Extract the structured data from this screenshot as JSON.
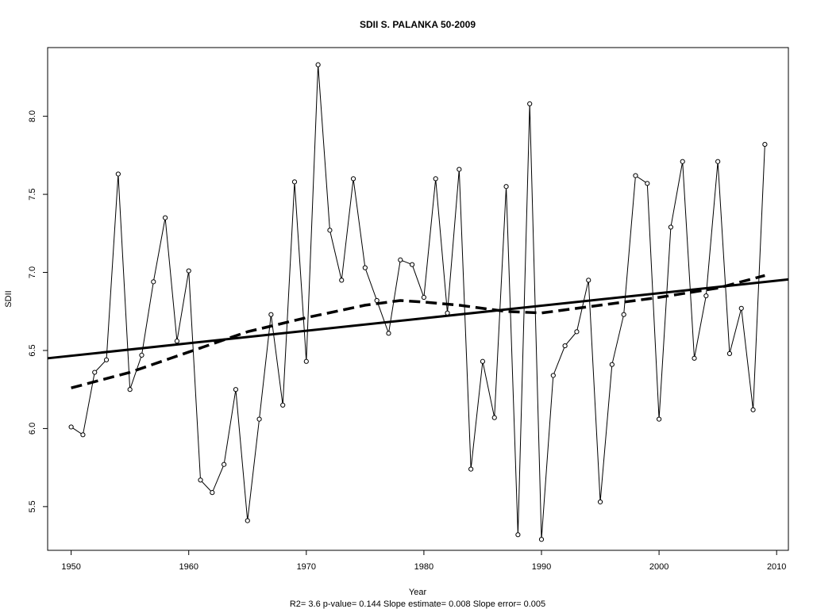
{
  "chart_data": {
    "type": "line",
    "title": "SDII   S. PALANKA 50-2009",
    "xlabel": "Year",
    "ylabel": "SDII",
    "footer": "R2= 3.6  p-value= 0.144  Slope estimate= 0.008  Slope error= 0.005",
    "xlim": [
      1948,
      2011
    ],
    "ylim": [
      5.22,
      8.44
    ],
    "x_ticks": [
      1950,
      1960,
      1970,
      1980,
      1990,
      2000,
      2010
    ],
    "y_ticks": [
      "5.5",
      "6.0",
      "6.5",
      "7.0",
      "7.5",
      "8.0"
    ],
    "grid": false,
    "series": [
      {
        "kind": "observed",
        "style": "thin line with open circle markers",
        "x": [
          1950,
          1951,
          1952,
          1953,
          1954,
          1955,
          1956,
          1957,
          1958,
          1959,
          1960,
          1961,
          1962,
          1963,
          1964,
          1965,
          1966,
          1967,
          1968,
          1969,
          1970,
          1971,
          1972,
          1973,
          1974,
          1975,
          1976,
          1977,
          1978,
          1979,
          1980,
          1981,
          1982,
          1983,
          1984,
          1985,
          1986,
          1987,
          1988,
          1989,
          1990,
          1991,
          1992,
          1993,
          1994,
          1995,
          1996,
          1997,
          1998,
          1999,
          2000,
          2001,
          2002,
          2003,
          2004,
          2005,
          2006,
          2007,
          2008,
          2009
        ],
        "values": [
          6.01,
          5.96,
          6.36,
          6.44,
          7.63,
          6.25,
          6.47,
          6.94,
          7.35,
          6.56,
          7.01,
          5.67,
          5.59,
          5.77,
          6.25,
          5.41,
          6.06,
          6.73,
          6.15,
          7.58,
          6.43,
          8.33,
          7.27,
          6.95,
          7.6,
          7.03,
          6.82,
          6.61,
          7.08,
          7.05,
          6.84,
          7.6,
          6.74,
          7.66,
          5.74,
          6.43,
          6.07,
          7.55,
          5.32,
          8.08,
          5.29,
          6.34,
          6.53,
          6.62,
          6.95,
          5.53,
          6.41,
          6.73,
          7.62,
          7.57,
          6.06,
          7.29,
          7.71,
          6.45,
          6.85,
          7.71,
          6.48,
          6.77,
          6.12,
          7.82
        ]
      },
      {
        "kind": "linear trend",
        "style": "thick solid line",
        "x": [
          1948,
          2011
        ],
        "values": [
          6.45,
          6.955
        ]
      },
      {
        "kind": "smoothed",
        "style": "thick dashed line",
        "x": [
          1950,
          1955,
          1960,
          1965,
          1970,
          1975,
          1978,
          1980,
          1983,
          1987,
          1990,
          1995,
          2000,
          2005,
          2009
        ],
        "values": [
          6.26,
          6.36,
          6.49,
          6.62,
          6.71,
          6.79,
          6.82,
          6.81,
          6.79,
          6.75,
          6.74,
          6.79,
          6.84,
          6.9,
          6.98
        ]
      }
    ]
  }
}
